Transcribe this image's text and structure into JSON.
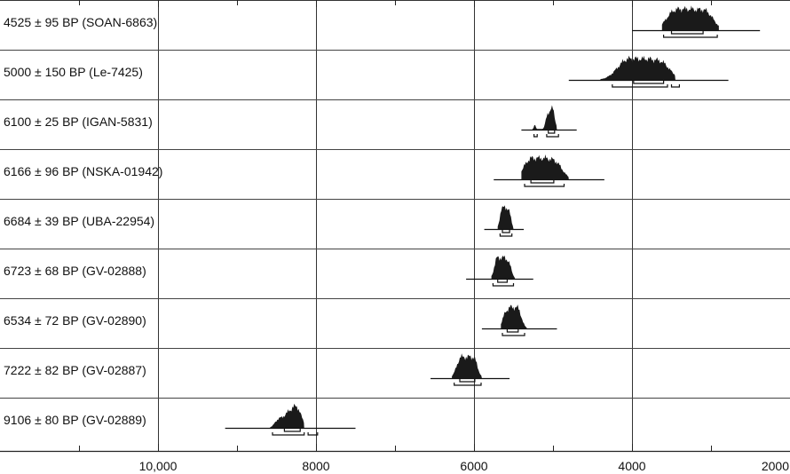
{
  "chart_data": {
    "type": "oxcal-multiplot",
    "x_unit": "cal BC (inferred from tick values only; no axis title printed)",
    "x_range": [
      12000,
      2000
    ],
    "x_reversed": true,
    "major_ticks": [
      10000,
      8000,
      6000,
      4000,
      2000
    ],
    "major_tick_labels": [
      "10,000",
      "8000",
      "6000",
      "4000",
      "2000"
    ],
    "minor_ticks": [
      11000,
      9000,
      7000,
      5000,
      3000
    ],
    "grid": "vertical lines at major ticks, horizontal row separators",
    "samples": [
      {
        "label": "4525 ± 95 BP (SOAN-6863)",
        "range_line": [
          4000,
          2380
        ],
        "peaks": [
          {
            "c": 3300,
            "w": 170,
            "h": 1.0
          },
          {
            "c": 3050,
            "w": 90,
            "h": 0.55
          },
          {
            "c": 3500,
            "w": 80,
            "h": 0.35
          }
        ],
        "density_extent": [
          3620,
          2900
        ],
        "brackets_68": [
          [
            3500,
            3100
          ]
        ],
        "brackets_95": [
          [
            3600,
            2920
          ]
        ]
      },
      {
        "label": "5000 ± 150 BP (Le-7425)",
        "range_line": [
          4800,
          2780
        ],
        "peaks": [
          {
            "c": 3850,
            "w": 200,
            "h": 1.0
          },
          {
            "c": 4100,
            "w": 110,
            "h": 0.45
          },
          {
            "c": 3600,
            "w": 90,
            "h": 0.35
          }
        ],
        "density_extent": [
          4400,
          3450
        ],
        "brackets_68": [
          [
            3980,
            3600
          ]
        ],
        "brackets_95": [
          [
            4250,
            3550
          ],
          [
            3500,
            3400
          ]
        ]
      },
      {
        "label": "6100 ± 25 BP (IGAN-5831)",
        "range_line": [
          5400,
          4700
        ],
        "peaks": [
          {
            "c": 5010,
            "w": 30,
            "h": 1.0
          },
          {
            "c": 5070,
            "w": 25,
            "h": 0.6
          },
          {
            "c": 5230,
            "w": 12,
            "h": 0.25
          }
        ],
        "density_extent": [
          5260,
          4950
        ],
        "brackets_68": [
          [
            5060,
            4980
          ]
        ],
        "brackets_95": [
          [
            5240,
            5200
          ],
          [
            5080,
            4930
          ]
        ]
      },
      {
        "label": "6166 ± 96 BP (NSKA-01942)",
        "range_line": [
          5750,
          4350
        ],
        "peaks": [
          {
            "c": 5150,
            "w": 130,
            "h": 1.0
          },
          {
            "c": 4950,
            "w": 80,
            "h": 0.5
          },
          {
            "c": 5320,
            "w": 70,
            "h": 0.45
          }
        ],
        "density_extent": [
          5400,
          4800
        ],
        "brackets_68": [
          [
            5280,
            4990
          ]
        ],
        "brackets_95": [
          [
            5360,
            4860
          ]
        ]
      },
      {
        "label": "6684 ± 39 BP (UBA-22954)",
        "range_line": [
          5870,
          5370
        ],
        "peaks": [
          {
            "c": 5600,
            "w": 35,
            "h": 1.0
          },
          {
            "c": 5650,
            "w": 25,
            "h": 0.7
          },
          {
            "c": 5550,
            "w": 25,
            "h": 0.45
          }
        ],
        "density_extent": [
          5700,
          5500
        ],
        "brackets_68": [
          [
            5640,
            5550
          ]
        ],
        "brackets_95": [
          [
            5670,
            5520
          ]
        ]
      },
      {
        "label": "6723 ± 68 BP (GV-02888)",
        "range_line": [
          6100,
          5250
        ],
        "peaks": [
          {
            "c": 5650,
            "w": 55,
            "h": 1.0
          },
          {
            "c": 5560,
            "w": 35,
            "h": 0.55
          },
          {
            "c": 5720,
            "w": 30,
            "h": 0.45
          }
        ],
        "density_extent": [
          5780,
          5480
        ],
        "brackets_68": [
          [
            5700,
            5580
          ]
        ],
        "brackets_95": [
          [
            5760,
            5500
          ]
        ]
      },
      {
        "label": "6534 ± 72 BP (GV-02890)",
        "range_line": [
          5900,
          4950
        ],
        "peaks": [
          {
            "c": 5520,
            "w": 60,
            "h": 1.0
          },
          {
            "c": 5430,
            "w": 40,
            "h": 0.55
          },
          {
            "c": 5610,
            "w": 35,
            "h": 0.4
          }
        ],
        "density_extent": [
          5660,
          5330
        ],
        "brackets_68": [
          [
            5580,
            5440
          ]
        ],
        "brackets_95": [
          [
            5640,
            5360
          ]
        ]
      },
      {
        "label": "7222 ± 82 BP (GV-02887)",
        "range_line": [
          6550,
          5550
        ],
        "peaks": [
          {
            "c": 6070,
            "w": 70,
            "h": 1.0
          },
          {
            "c": 6180,
            "w": 50,
            "h": 0.65
          },
          {
            "c": 5990,
            "w": 40,
            "h": 0.4
          }
        ],
        "density_extent": [
          6280,
          5900
        ],
        "brackets_68": [
          [
            6180,
            5990
          ]
        ],
        "brackets_95": [
          [
            6250,
            5910
          ]
        ]
      },
      {
        "label": "9106 ± 80 BP (GV-02889)",
        "range_line": [
          9150,
          7500
        ],
        "peaks": [
          {
            "c": 8250,
            "w": 60,
            "h": 1.0
          },
          {
            "c": 8370,
            "w": 55,
            "h": 0.55
          },
          {
            "c": 8480,
            "w": 45,
            "h": 0.35
          }
        ],
        "density_extent": [
          8580,
          8150
        ],
        "brackets_68": [
          [
            8400,
            8200
          ]
        ],
        "brackets_95": [
          [
            8550,
            8150
          ],
          [
            8100,
            7980
          ]
        ]
      }
    ]
  }
}
